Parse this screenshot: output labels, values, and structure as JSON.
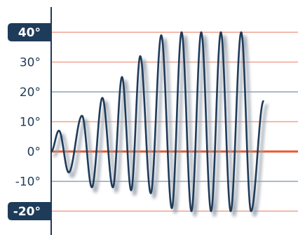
{
  "chart_data": {
    "type": "line",
    "title": "",
    "xlabel": "",
    "ylabel": "",
    "ylim": [
      -25,
      47
    ],
    "y_ticks": [
      {
        "value": 40,
        "label": "40°",
        "highlight": true,
        "line": "orange"
      },
      {
        "value": 30,
        "label": "30°",
        "highlight": false,
        "line": "orange"
      },
      {
        "value": 20,
        "label": "20°",
        "highlight": false,
        "line": "blue"
      },
      {
        "value": 10,
        "label": "10°",
        "highlight": false,
        "line": "orange"
      },
      {
        "value": 0,
        "label": "0°",
        "highlight": false,
        "line": "zero"
      },
      {
        "value": -10,
        "label": "-10°",
        "highlight": false,
        "line": "blue"
      },
      {
        "value": -20,
        "label": "-20°",
        "highlight": true,
        "line": "orange"
      }
    ],
    "grid": true,
    "legend": "none",
    "series": [
      {
        "style": "oscillating wave with growing amplitude",
        "peaks": [
          7,
          12,
          18,
          25,
          32,
          39,
          40,
          40,
          40,
          40
        ],
        "troughs": [
          -7,
          -12,
          -12,
          -13,
          -14,
          -19,
          -20,
          -20,
          -20,
          -20
        ],
        "end_value": 17
      }
    ],
    "colors": {
      "wave": "#1f3b5a",
      "shadow": "#9aa3ad",
      "axis": "#1f3b5a",
      "grid_orange": "#f0a48f",
      "grid_blue": "#8ea3b5",
      "zero_line": "#e9572b",
      "label_badge": "#1f3b5a",
      "label_text": "#1f3b5a"
    }
  }
}
